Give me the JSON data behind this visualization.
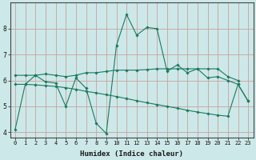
{
  "xlabel": "Humidex (Indice chaleur)",
  "ylabel": "",
  "x_values": [
    0,
    1,
    2,
    3,
    4,
    5,
    6,
    7,
    8,
    9,
    10,
    11,
    12,
    13,
    14,
    15,
    16,
    17,
    18,
    19,
    20,
    21,
    22,
    23
  ],
  "line1": [
    4.1,
    5.85,
    6.2,
    5.95,
    5.9,
    5.0,
    6.1,
    5.7,
    4.35,
    3.95,
    7.35,
    8.55,
    7.75,
    8.05,
    8.0,
    6.35,
    6.6,
    6.3,
    6.45,
    6.1,
    6.15,
    6.0,
    5.85,
    5.2
  ],
  "line2": [
    6.2,
    6.2,
    6.2,
    6.25,
    6.2,
    6.15,
    6.2,
    6.3,
    6.3,
    6.35,
    6.4,
    6.4,
    6.4,
    6.42,
    6.45,
    6.45,
    6.45,
    6.45,
    6.45,
    6.45,
    6.45,
    6.15,
    6.0,
    null
  ],
  "line3": [
    5.85,
    5.85,
    5.83,
    5.8,
    5.77,
    5.72,
    5.66,
    5.58,
    5.52,
    5.45,
    5.38,
    5.3,
    5.22,
    5.14,
    5.07,
    5.0,
    4.93,
    4.85,
    4.78,
    4.72,
    4.66,
    4.62,
    5.85,
    5.2
  ],
  "line_color": "#1a7a5e",
  "bg_color": "#cde8e8",
  "grid_color": "#c8a0a0",
  "xlim": [
    -0.5,
    23.5
  ],
  "ylim": [
    3.8,
    9.0
  ],
  "yticks": [
    4,
    5,
    6,
    7,
    8
  ],
  "xticks": [
    0,
    1,
    2,
    3,
    4,
    5,
    6,
    7,
    8,
    9,
    10,
    11,
    12,
    13,
    14,
    15,
    16,
    17,
    18,
    19,
    20,
    21,
    22,
    23
  ],
  "tick_fontsize": 5.0,
  "xlabel_fontsize": 6.5
}
